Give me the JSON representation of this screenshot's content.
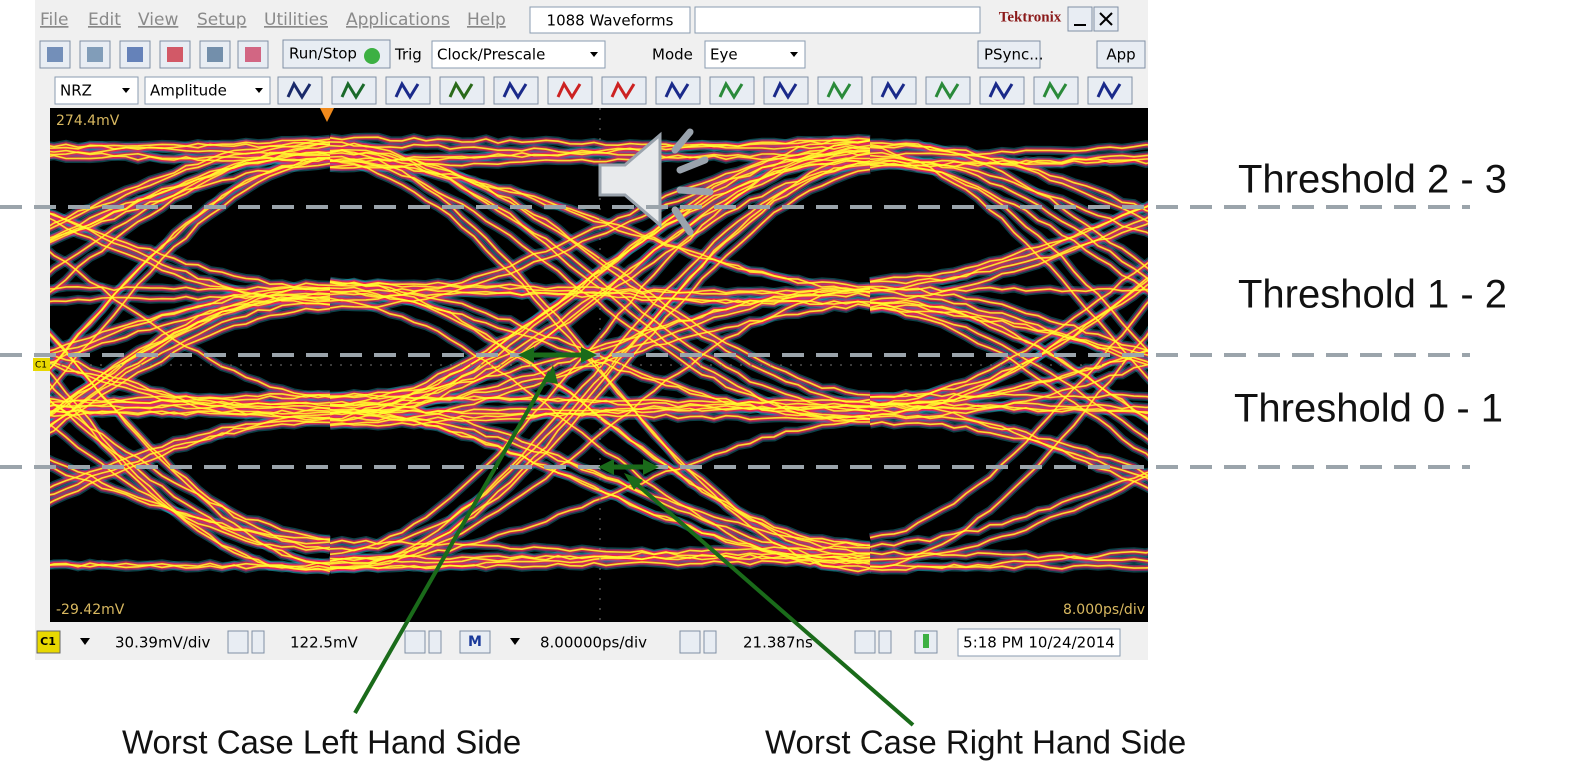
{
  "menu": [
    "File",
    "Edit",
    "View",
    "Setup",
    "Utilities",
    "Applications",
    "Help"
  ],
  "window_title": "1088 Waveforms",
  "brand": "Tektronix",
  "toolbar": {
    "run_stop": "Run/Stop",
    "trig_label": "Trig",
    "trig_source": "Clock/Prescale",
    "mode_label": "Mode",
    "mode_value": "Eye",
    "psync": "PSync...",
    "app": "App",
    "encoding": "NRZ",
    "measurement": "Amplitude"
  },
  "display": {
    "top_label": "274.4mV",
    "bottom_label": "-29.42mV",
    "timebase_label": "8.000ps/div",
    "channel_marker": "C1"
  },
  "status": {
    "channel": "C1",
    "vertical_scale": "30.39mV/div",
    "offset": "122.5mV",
    "math": "M",
    "horizontal_scale": "8.00000ps/div",
    "position": "21.387ns",
    "datetime": "5:18 PM 10/24/2014"
  },
  "annotations": {
    "thresholds": [
      "Threshold 2 - 3",
      "Threshold 1 - 2",
      "Threshold 0 - 1"
    ],
    "left": "Worst Case Left Hand Side",
    "right": "Worst Case Right Hand Side"
  }
}
